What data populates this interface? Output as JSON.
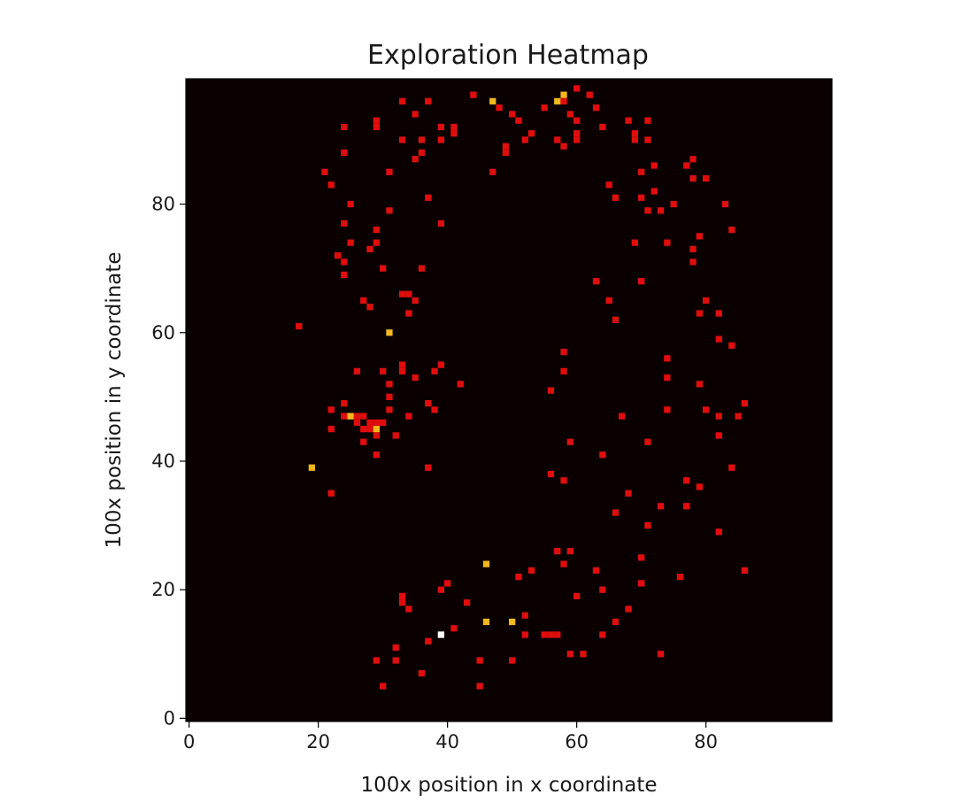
{
  "chart_data": {
    "type": "heatmap",
    "title": "Exploration Heatmap",
    "xlabel": "100x position in x coordinate",
    "ylabel": "100x position in y coordinate",
    "xlim": [
      0,
      100
    ],
    "ylim": [
      0,
      100
    ],
    "x_ticks": [
      "0",
      "20",
      "40",
      "60",
      "80"
    ],
    "y_ticks": [
      "0",
      "20",
      "40",
      "60",
      "80"
    ],
    "colormap": "hot",
    "background_color": "#0a0000",
    "level_colors": {
      "1": "#e00d0d",
      "2": "#f2b81c",
      "3": "#ffffff"
    },
    "cells": [
      [
        44,
        97,
        1
      ],
      [
        47,
        96,
        2
      ],
      [
        58,
        97,
        2
      ],
      [
        57,
        96,
        2
      ],
      [
        60,
        98,
        1
      ],
      [
        62,
        97,
        1
      ],
      [
        33,
        96,
        1
      ],
      [
        37,
        96,
        1
      ],
      [
        29,
        93,
        1
      ],
      [
        29,
        92,
        1
      ],
      [
        24,
        92,
        1
      ],
      [
        35,
        94,
        1
      ],
      [
        36,
        90,
        1
      ],
      [
        33,
        90,
        1
      ],
      [
        39,
        92,
        1
      ],
      [
        39,
        90,
        1
      ],
      [
        41,
        92,
        1
      ],
      [
        41,
        91,
        1
      ],
      [
        48,
        95,
        1
      ],
      [
        50,
        94,
        1
      ],
      [
        51,
        93,
        1
      ],
      [
        55,
        95,
        1
      ],
      [
        53,
        91,
        1
      ],
      [
        52,
        90,
        1
      ],
      [
        58,
        96,
        1
      ],
      [
        59,
        94,
        1
      ],
      [
        63,
        95,
        1
      ],
      [
        60,
        93,
        1
      ],
      [
        60,
        91,
        1
      ],
      [
        60,
        90,
        1
      ],
      [
        57,
        90,
        1
      ],
      [
        58,
        89,
        1
      ],
      [
        64,
        92,
        1
      ],
      [
        68,
        93,
        1
      ],
      [
        69,
        91,
        1
      ],
      [
        69,
        90,
        1
      ],
      [
        71,
        93,
        1
      ],
      [
        71,
        90,
        1
      ],
      [
        49,
        89,
        1
      ],
      [
        49,
        88,
        1
      ],
      [
        24,
        88,
        1
      ],
      [
        36,
        88,
        1
      ],
      [
        35,
        87,
        1
      ],
      [
        21,
        85,
        1
      ],
      [
        22,
        83,
        1
      ],
      [
        31,
        85,
        1
      ],
      [
        47,
        85,
        1
      ],
      [
        72,
        86,
        1
      ],
      [
        70,
        85,
        1
      ],
      [
        77,
        86,
        1
      ],
      [
        78,
        87,
        1
      ],
      [
        78,
        84,
        1
      ],
      [
        80,
        84,
        1
      ],
      [
        65,
        83,
        1
      ],
      [
        66,
        81,
        1
      ],
      [
        37,
        81,
        1
      ],
      [
        70,
        81,
        1
      ],
      [
        72,
        82,
        1
      ],
      [
        25,
        80,
        1
      ],
      [
        31,
        79,
        1
      ],
      [
        71,
        79,
        1
      ],
      [
        73,
        79,
        1
      ],
      [
        75,
        80,
        1
      ],
      [
        83,
        80,
        1
      ],
      [
        24,
        77,
        1
      ],
      [
        39,
        77,
        1
      ],
      [
        29,
        76,
        1
      ],
      [
        84,
        76,
        1
      ],
      [
        79,
        75,
        1
      ],
      [
        29,
        74,
        1
      ],
      [
        25,
        74,
        1
      ],
      [
        69,
        74,
        1
      ],
      [
        74,
        74,
        1
      ],
      [
        78,
        73,
        1
      ],
      [
        28,
        73,
        1
      ],
      [
        23,
        72,
        1
      ],
      [
        24,
        71,
        1
      ],
      [
        78,
        71,
        1
      ],
      [
        30,
        70,
        1
      ],
      [
        36,
        70,
        1
      ],
      [
        24,
        69,
        1
      ],
      [
        63,
        68,
        1
      ],
      [
        70,
        68,
        1
      ],
      [
        33,
        66,
        1
      ],
      [
        34,
        66,
        1
      ],
      [
        27,
        65,
        1
      ],
      [
        35,
        65,
        1
      ],
      [
        65,
        65,
        1
      ],
      [
        80,
        65,
        1
      ],
      [
        28,
        64,
        1
      ],
      [
        34,
        63,
        1
      ],
      [
        79,
        63,
        1
      ],
      [
        82,
        63,
        1
      ],
      [
        66,
        62,
        1
      ],
      [
        17,
        61,
        1
      ],
      [
        31,
        60,
        2
      ],
      [
        82,
        59,
        1
      ],
      [
        84,
        58,
        1
      ],
      [
        58,
        57,
        1
      ],
      [
        74,
        56,
        1
      ],
      [
        26,
        54,
        1
      ],
      [
        30,
        54,
        1
      ],
      [
        33,
        55,
        1
      ],
      [
        33,
        54,
        1
      ],
      [
        39,
        55,
        1
      ],
      [
        38,
        54,
        1
      ],
      [
        58,
        54,
        1
      ],
      [
        35,
        53,
        1
      ],
      [
        74,
        53,
        1
      ],
      [
        31,
        52,
        1
      ],
      [
        42,
        52,
        1
      ],
      [
        79,
        52,
        1
      ],
      [
        56,
        51,
        1
      ],
      [
        31,
        50,
        1
      ],
      [
        37,
        49,
        1
      ],
      [
        24,
        49,
        1
      ],
      [
        86,
        49,
        1
      ],
      [
        22,
        48,
        1
      ],
      [
        31,
        48,
        1
      ],
      [
        38,
        48,
        1
      ],
      [
        74,
        48,
        1
      ],
      [
        80,
        48,
        1
      ],
      [
        24,
        47,
        1
      ],
      [
        25,
        47,
        2
      ],
      [
        26,
        47,
        1
      ],
      [
        27,
        47,
        1
      ],
      [
        34,
        47,
        1
      ],
      [
        67,
        47,
        1
      ],
      [
        82,
        47,
        1
      ],
      [
        85,
        47,
        1
      ],
      [
        26,
        46,
        1
      ],
      [
        28,
        46,
        1
      ],
      [
        29,
        46,
        1
      ],
      [
        30,
        46,
        1
      ],
      [
        27,
        45,
        1
      ],
      [
        28,
        45,
        1
      ],
      [
        29,
        45,
        2
      ],
      [
        22,
        45,
        1
      ],
      [
        29,
        44,
        1
      ],
      [
        32,
        44,
        1
      ],
      [
        82,
        44,
        1
      ],
      [
        27,
        43,
        1
      ],
      [
        59,
        43,
        1
      ],
      [
        71,
        43,
        1
      ],
      [
        29,
        41,
        1
      ],
      [
        64,
        41,
        1
      ],
      [
        19,
        39,
        2
      ],
      [
        37,
        39,
        1
      ],
      [
        84,
        39,
        1
      ],
      [
        56,
        38,
        1
      ],
      [
        58,
        37,
        1
      ],
      [
        77,
        37,
        1
      ],
      [
        79,
        36,
        1
      ],
      [
        22,
        35,
        1
      ],
      [
        68,
        35,
        1
      ],
      [
        73,
        33,
        1
      ],
      [
        77,
        33,
        1
      ],
      [
        66,
        32,
        1
      ],
      [
        71,
        30,
        1
      ],
      [
        82,
        29,
        1
      ],
      [
        57,
        26,
        1
      ],
      [
        59,
        26,
        1
      ],
      [
        70,
        25,
        1
      ],
      [
        46,
        24,
        2
      ],
      [
        58,
        24,
        1
      ],
      [
        63,
        23,
        1
      ],
      [
        86,
        23,
        1
      ],
      [
        53,
        23,
        1
      ],
      [
        51,
        22,
        1
      ],
      [
        76,
        22,
        1
      ],
      [
        40,
        21,
        1
      ],
      [
        70,
        21,
        1
      ],
      [
        39,
        20,
        1
      ],
      [
        64,
        20,
        1
      ],
      [
        33,
        19,
        1
      ],
      [
        60,
        19,
        1
      ],
      [
        33,
        18,
        1
      ],
      [
        43,
        18,
        1
      ],
      [
        34,
        17,
        1
      ],
      [
        68,
        17,
        1
      ],
      [
        52,
        16,
        1
      ],
      [
        46,
        15,
        2
      ],
      [
        50,
        15,
        2
      ],
      [
        66,
        15,
        1
      ],
      [
        41,
        14,
        1
      ],
      [
        39,
        13,
        3
      ],
      [
        52,
        13,
        1
      ],
      [
        55,
        13,
        1
      ],
      [
        56,
        13,
        1
      ],
      [
        57,
        13,
        1
      ],
      [
        64,
        13,
        1
      ],
      [
        37,
        12,
        1
      ],
      [
        32,
        11,
        1
      ],
      [
        61,
        10,
        1
      ],
      [
        59,
        10,
        1
      ],
      [
        73,
        10,
        1
      ],
      [
        29,
        9,
        1
      ],
      [
        32,
        9,
        1
      ],
      [
        45,
        9,
        1
      ],
      [
        50,
        9,
        1
      ],
      [
        36,
        7,
        1
      ],
      [
        30,
        5,
        1
      ],
      [
        45,
        5,
        1
      ]
    ]
  }
}
